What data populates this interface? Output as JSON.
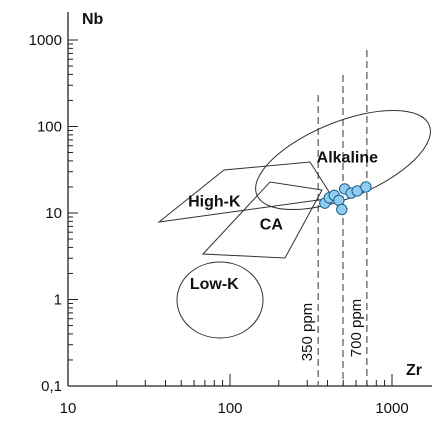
{
  "chart_data": {
    "type": "scatter",
    "title": "",
    "xlabel": "Zr",
    "ylabel": "Nb",
    "x_scale": "log",
    "y_scale": "log",
    "xlim": [
      10,
      2000
    ],
    "ylim": [
      0.1,
      1500
    ],
    "x_ticks": [
      {
        "value": 10,
        "label": "10"
      },
      {
        "value": 100,
        "label": "100"
      },
      {
        "value": 1000,
        "label": "1000"
      }
    ],
    "y_ticks": [
      {
        "value": 0.1,
        "label": "0,1"
      },
      {
        "value": 1,
        "label": "1"
      },
      {
        "value": 10,
        "label": "10"
      },
      {
        "value": 100,
        "label": "100"
      },
      {
        "value": 1000,
        "label": "1000"
      }
    ],
    "grid": false,
    "point_color": "#8ecdef",
    "fields": [
      {
        "name": "Alkaline",
        "shape": "ellipse",
        "label_at": [
          530,
          45
        ]
      },
      {
        "name": "High-K",
        "shape": "polygon",
        "label_at": [
          80,
          14
        ]
      },
      {
        "name": "CA",
        "shape": "polygon",
        "label_at": [
          180,
          7.6
        ]
      },
      {
        "name": "Low-K",
        "shape": "ellipse",
        "label_at": [
          80,
          1.55
        ]
      }
    ],
    "reference_lines": [
      {
        "label": "350 ppm",
        "x": 350
      },
      {
        "label": "700 ppm",
        "x": 700
      }
    ],
    "points": [
      {
        "x": 385,
        "y": 13
      },
      {
        "x": 410,
        "y": 15
      },
      {
        "x": 440,
        "y": 16
      },
      {
        "x": 470,
        "y": 14
      },
      {
        "x": 490,
        "y": 11
      },
      {
        "x": 510,
        "y": 19
      },
      {
        "x": 560,
        "y": 17
      },
      {
        "x": 610,
        "y": 18
      },
      {
        "x": 690,
        "y": 20
      }
    ]
  }
}
